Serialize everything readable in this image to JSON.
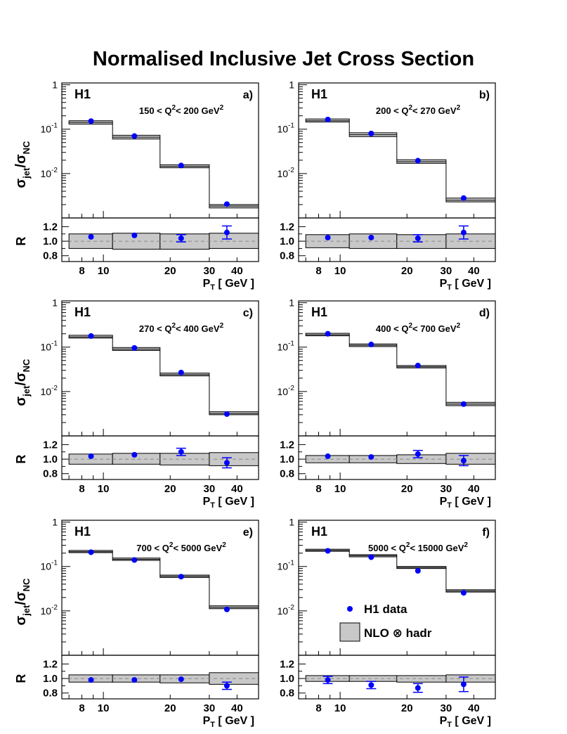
{
  "title": "Normalised Inclusive Jet Cross Section",
  "colors": {
    "data": "#0000ff",
    "band": "#c8c8c8",
    "axes": "#000000",
    "ref_line": "#888888"
  },
  "legend": {
    "data_label": "H1 data",
    "model_label": "NLO ⊗ hadr"
  },
  "chart_data": [
    {
      "type": "line",
      "panel": "a)",
      "tag": "H1",
      "q2_pre": "150 < Q",
      "q2_post": "< 200 GeV",
      "ylabel_top": "σjet/σNC",
      "ylabel_bottom": "R",
      "xlabel": "PT [ GeV ]",
      "x_log": true,
      "xlim": [
        6.5,
        50
      ],
      "ylim": [
        0.001,
        1.1
      ],
      "y_log": true,
      "rlim": [
        0.72,
        1.32
      ],
      "x_ticks": [
        8,
        10,
        20,
        30,
        40
      ],
      "y_ticks": [
        "10-2",
        "10-1",
        "1"
      ],
      "r_ticks": [
        "0.8",
        "1.0",
        "1.2"
      ],
      "bins": [
        7,
        11,
        18,
        30,
        50
      ],
      "nlo": [
        0.142,
        0.066,
        0.0145,
        0.00185
      ],
      "nlo_band": [
        [
          0.13,
          0.155
        ],
        [
          0.06,
          0.073
        ],
        [
          0.0135,
          0.0158
        ],
        [
          0.00168,
          0.002
        ]
      ],
      "data_x": [
        8.8,
        13.8,
        22.4,
        36.0
      ],
      "data_y": [
        0.152,
        0.07,
        0.0152,
        0.00205
      ],
      "r_band": [
        [
          0.9,
          1.1
        ],
        [
          0.89,
          1.11
        ],
        [
          0.89,
          1.1
        ],
        [
          0.9,
          1.11
        ]
      ],
      "r_points": [
        1.06,
        1.08,
        1.04,
        1.12
      ],
      "r_err": [
        0.02,
        0.03,
        0.05,
        0.09
      ]
    },
    {
      "type": "line",
      "panel": "b)",
      "tag": "H1",
      "q2_pre": "200 < Q",
      "q2_post": "< 270 GeV",
      "ylabel_top": "",
      "ylabel_bottom": "",
      "xlabel": "PT [ GeV ]",
      "x_log": true,
      "xlim": [
        6.5,
        50
      ],
      "ylim": [
        0.001,
        1.1
      ],
      "y_log": true,
      "rlim": [
        0.72,
        1.32
      ],
      "x_ticks": [
        8,
        10,
        20,
        30,
        40
      ],
      "y_ticks": [
        "10-2",
        "10-1",
        "1"
      ],
      "r_ticks": [
        "0.8",
        "1.0",
        "1.2"
      ],
      "bins": [
        7,
        11,
        18,
        30,
        50
      ],
      "nlo": [
        0.155,
        0.075,
        0.0185,
        0.0025
      ],
      "nlo_band": [
        [
          0.145,
          0.17
        ],
        [
          0.068,
          0.083
        ],
        [
          0.017,
          0.0205
        ],
        [
          0.0023,
          0.0028
        ]
      ],
      "data_x": [
        8.8,
        13.8,
        22.4,
        36.0
      ],
      "data_y": [
        0.165,
        0.08,
        0.0195,
        0.0028
      ],
      "r_band": [
        [
          0.91,
          1.09
        ],
        [
          0.9,
          1.1
        ],
        [
          0.9,
          1.09
        ],
        [
          0.9,
          1.1
        ]
      ],
      "r_points": [
        1.05,
        1.05,
        1.04,
        1.12
      ],
      "r_err": [
        0.02,
        0.02,
        0.05,
        0.09
      ]
    },
    {
      "type": "line",
      "panel": "c)",
      "tag": "H1",
      "q2_pre": "270 < Q",
      "q2_post": "< 400 GeV",
      "ylabel_top": "σjet/σNC",
      "ylabel_bottom": "R",
      "xlabel": "PT [ GeV ]",
      "x_log": true,
      "xlim": [
        6.5,
        50
      ],
      "ylim": [
        0.001,
        1.1
      ],
      "y_log": true,
      "rlim": [
        0.72,
        1.32
      ],
      "x_ticks": [
        8,
        10,
        20,
        30,
        40
      ],
      "y_ticks": [
        "10-2",
        "10-1",
        "1"
      ],
      "r_ticks": [
        "0.8",
        "1.0",
        "1.2"
      ],
      "bins": [
        7,
        11,
        18,
        30,
        50
      ],
      "nlo": [
        0.17,
        0.09,
        0.024,
        0.0032
      ],
      "nlo_band": [
        [
          0.16,
          0.185
        ],
        [
          0.084,
          0.098
        ],
        [
          0.0225,
          0.026
        ],
        [
          0.003,
          0.0035
        ]
      ],
      "data_x": [
        8.8,
        13.8,
        22.4,
        36.0
      ],
      "data_y": [
        0.178,
        0.096,
        0.0268,
        0.0031
      ],
      "r_band": [
        [
          0.93,
          1.07
        ],
        [
          0.93,
          1.08
        ],
        [
          0.92,
          1.08
        ],
        [
          0.91,
          1.09
        ]
      ],
      "r_points": [
        1.04,
        1.06,
        1.1,
        0.95
      ],
      "r_err": [
        0.02,
        0.02,
        0.05,
        0.07
      ]
    },
    {
      "type": "line",
      "panel": "d)",
      "tag": "H1",
      "q2_pre": "400 < Q",
      "q2_post": "< 700 GeV",
      "ylabel_top": "",
      "ylabel_bottom": "",
      "xlabel": "PT [ GeV ]",
      "x_log": true,
      "xlim": [
        6.5,
        50
      ],
      "ylim": [
        0.001,
        1.1
      ],
      "y_log": true,
      "rlim": [
        0.72,
        1.32
      ],
      "x_ticks": [
        8,
        10,
        20,
        30,
        40
      ],
      "y_ticks": [
        "10-2",
        "10-1",
        "1"
      ],
      "r_ticks": [
        "0.8",
        "1.0",
        "1.2"
      ],
      "bins": [
        7,
        11,
        18,
        30,
        50
      ],
      "nlo": [
        0.19,
        0.11,
        0.036,
        0.0052
      ],
      "nlo_band": [
        [
          0.18,
          0.205
        ],
        [
          0.103,
          0.118
        ],
        [
          0.034,
          0.0385
        ],
        [
          0.0048,
          0.0057
        ]
      ],
      "data_x": [
        8.8,
        13.8,
        22.4,
        36.0
      ],
      "data_y": [
        0.2,
        0.115,
        0.0385,
        0.0052
      ],
      "r_band": [
        [
          0.95,
          1.05
        ],
        [
          0.95,
          1.05
        ],
        [
          0.94,
          1.06
        ],
        [
          0.93,
          1.08
        ]
      ],
      "r_points": [
        1.04,
        1.03,
        1.07,
        0.98
      ],
      "r_err": [
        0.02,
        0.02,
        0.05,
        0.07
      ]
    },
    {
      "type": "line",
      "panel": "e)",
      "tag": "H1",
      "q2_pre": "700 < Q",
      "q2_post": "< 5000 GeV",
      "ylabel_top": "σjet/σNC",
      "ylabel_bottom": "R",
      "xlabel": "PT [ GeV ]",
      "x_log": true,
      "xlim": [
        6.5,
        50
      ],
      "ylim": [
        0.001,
        1.1
      ],
      "y_log": true,
      "rlim": [
        0.72,
        1.32
      ],
      "x_ticks": [
        8,
        10,
        20,
        30,
        40
      ],
      "y_ticks": [
        "10-2",
        "10-1",
        "1"
      ],
      "r_ticks": [
        "0.8",
        "1.0",
        "1.2"
      ],
      "bins": [
        7,
        11,
        18,
        30,
        50
      ],
      "nlo": [
        0.215,
        0.145,
        0.06,
        0.012
      ],
      "nlo_band": [
        [
          0.205,
          0.23
        ],
        [
          0.137,
          0.155
        ],
        [
          0.0565,
          0.064
        ],
        [
          0.0112,
          0.013
        ]
      ],
      "data_x": [
        8.8,
        13.8,
        22.4,
        36.0
      ],
      "data_y": [
        0.21,
        0.14,
        0.059,
        0.0108
      ],
      "r_band": [
        [
          0.95,
          1.05
        ],
        [
          0.95,
          1.05
        ],
        [
          0.94,
          1.05
        ],
        [
          0.92,
          1.08
        ]
      ],
      "r_points": [
        0.98,
        0.98,
        0.99,
        0.9
      ],
      "r_err": [
        0.015,
        0.015,
        0.02,
        0.05
      ]
    },
    {
      "type": "line",
      "panel": "f)",
      "tag": "H1",
      "q2_pre": "5000 < Q",
      "q2_post": "< 15000 GeV",
      "ylabel_top": "",
      "ylabel_bottom": "",
      "xlabel": "PT [ GeV ]",
      "x_log": true,
      "xlim": [
        6.5,
        50
      ],
      "ylim": [
        0.001,
        1.1
      ],
      "y_log": true,
      "rlim": [
        0.72,
        1.32
      ],
      "x_ticks": [
        8,
        10,
        20,
        30,
        40
      ],
      "y_ticks": [
        "10-2",
        "10-1",
        "1"
      ],
      "r_ticks": [
        "0.8",
        "1.0",
        "1.2"
      ],
      "bins": [
        7,
        11,
        18,
        30,
        50
      ],
      "nlo": [
        0.23,
        0.175,
        0.095,
        0.028
      ],
      "nlo_band": [
        [
          0.22,
          0.245
        ],
        [
          0.165,
          0.185
        ],
        [
          0.09,
          0.1
        ],
        [
          0.0265,
          0.03
        ]
      ],
      "data_x": [
        8.8,
        13.8,
        22.4,
        36.0
      ],
      "data_y": [
        0.225,
        0.162,
        0.08,
        0.0255
      ],
      "r_band": [
        [
          0.96,
          1.04
        ],
        [
          0.96,
          1.04
        ],
        [
          0.95,
          1.04
        ],
        [
          0.95,
          1.05
        ]
      ],
      "r_points": [
        0.98,
        0.91,
        0.87,
        0.92
      ],
      "r_err": [
        0.05,
        0.05,
        0.06,
        0.1
      ]
    }
  ]
}
